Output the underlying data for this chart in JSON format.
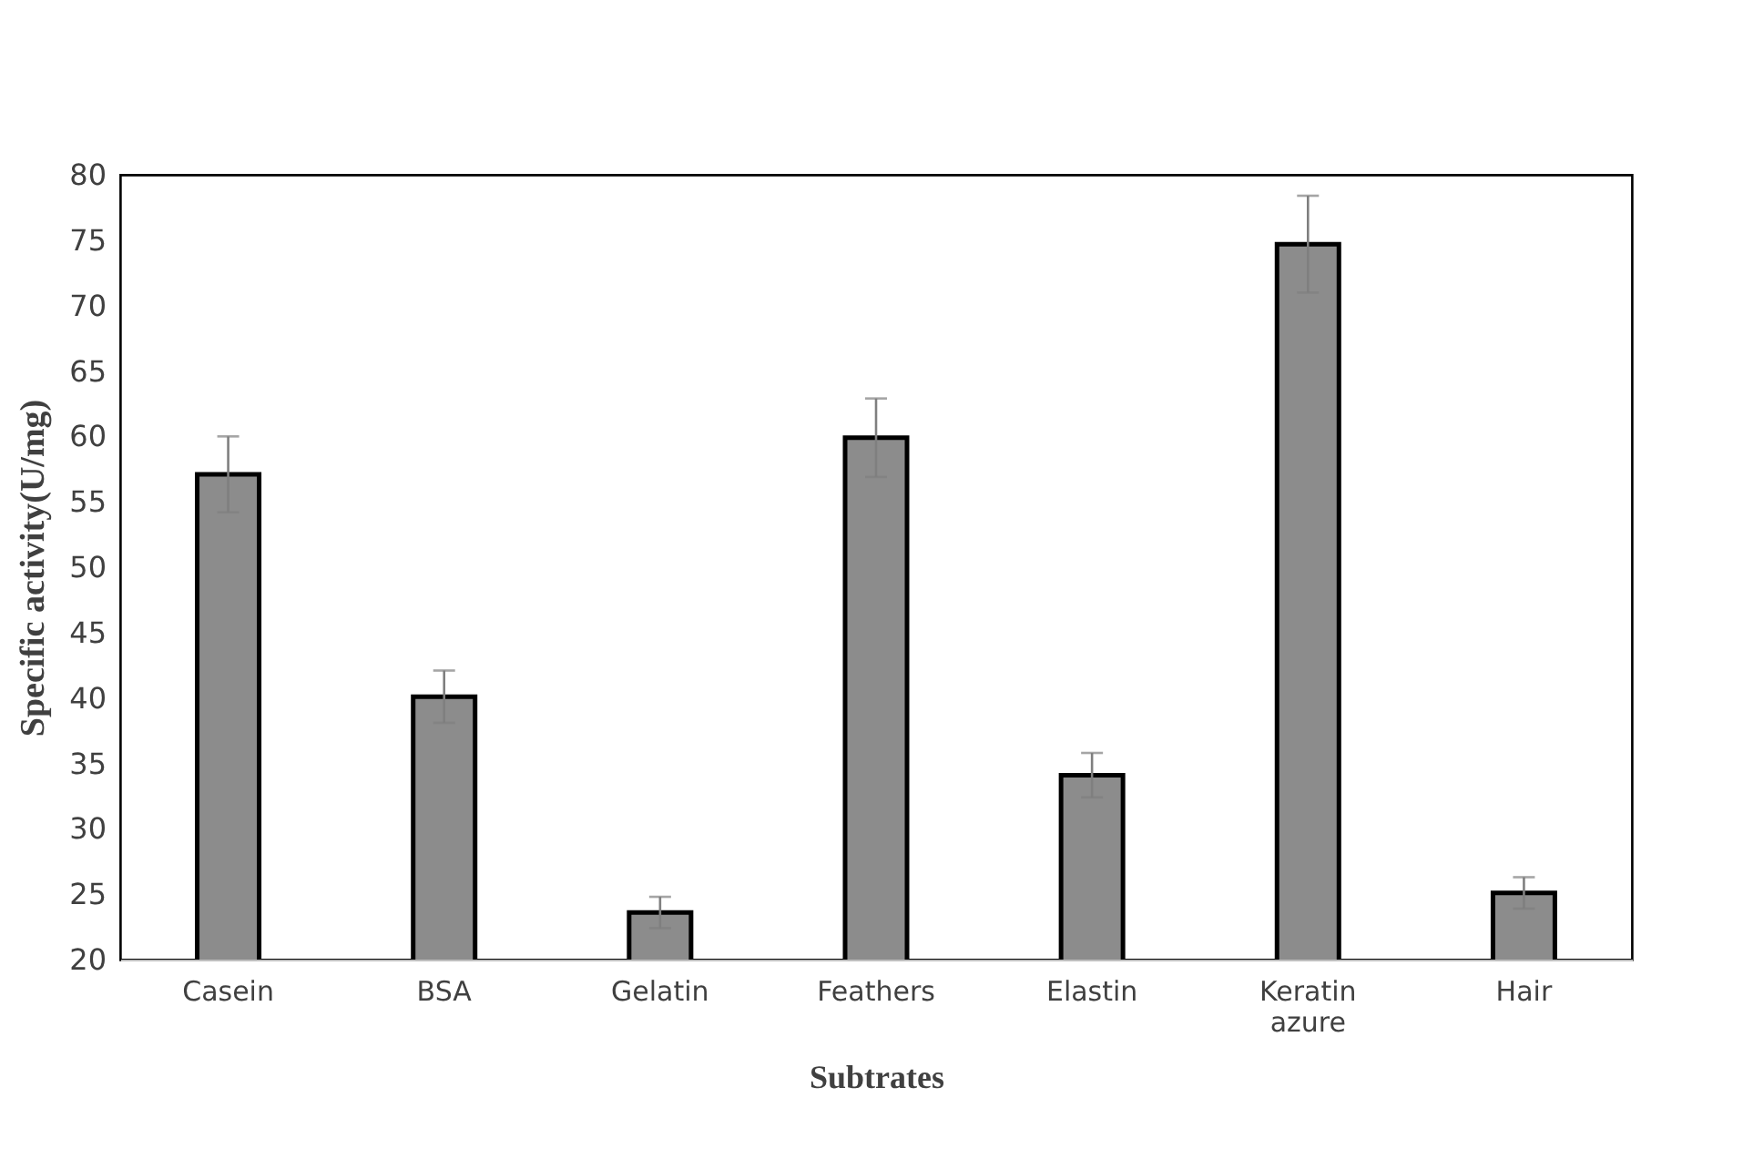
{
  "chart_data": {
    "type": "bar",
    "xlabel": "Subtrates",
    "ylabel": "Specific activity(U/mg)",
    "categories": [
      "Casein",
      "BSA",
      "Gelatin",
      "Feathers",
      "Elastin",
      "Keratin azure",
      "Hair"
    ],
    "values": [
      57.1,
      40.1,
      23.6,
      59.9,
      34.1,
      74.7,
      25.1
    ],
    "errors": [
      2.9,
      2.0,
      1.2,
      3.0,
      1.7,
      3.7,
      1.2
    ],
    "color": "#8c8c8c",
    "ylim": [
      20,
      80
    ],
    "yticks": [
      20,
      25,
      30,
      35,
      40,
      45,
      50,
      55,
      60,
      65,
      70,
      75,
      80
    ],
    "grid": false
  }
}
